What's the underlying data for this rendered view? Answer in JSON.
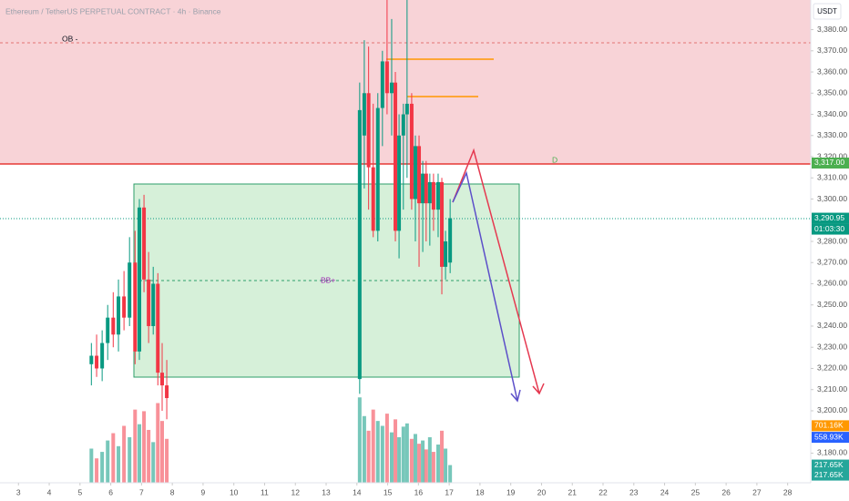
{
  "chart_data": {
    "type": "candlestick",
    "title": "Ethereum / TetherUS PERPETUAL CONTRACT · 4h · Binance",
    "y_unit": "USDT",
    "x": [
      5.37,
      5.54,
      5.72,
      5.9,
      6.08,
      6.25,
      6.43,
      6.61,
      6.79,
      6.93,
      7.08,
      7.23,
      7.38,
      7.53,
      7.67,
      7.82,
      14.09,
      14.24,
      14.38,
      14.53,
      14.68,
      14.83,
      14.98,
      15.13,
      15.25,
      15.37,
      15.51,
      15.63,
      15.78,
      15.9,
      16.02,
      16.14,
      16.25,
      16.37,
      16.49,
      16.64,
      16.76,
      16.88,
      17.03
    ],
    "open": [
      3222,
      3226,
      3220,
      3232,
      3244,
      3236,
      3254,
      3244,
      3270,
      3228,
      3296,
      3262,
      3240,
      3260,
      3218,
      3212,
      3215,
      3330,
      3350,
      3315,
      3285,
      3343,
      3365,
      3350,
      3355,
      3285,
      3330,
      3340,
      3345,
      3300,
      3325,
      3298,
      3312,
      3298,
      3308,
      3295,
      3308,
      3268,
      3270
    ],
    "high": [
      3232,
      3236,
      3238,
      3250,
      3256,
      3262,
      3266,
      3282,
      3285,
      3300,
      3302,
      3275,
      3268,
      3265,
      3232,
      3224,
      3355,
      3375,
      3372,
      3345,
      3350,
      3370,
      3395,
      3385,
      3360,
      3340,
      3345,
      3395,
      3350,
      3330,
      3330,
      3318,
      3318,
      3312,
      3312,
      3312,
      3310,
      3285,
      3300
    ],
    "low": [
      3212,
      3216,
      3214,
      3224,
      3230,
      3228,
      3238,
      3240,
      3222,
      3224,
      3256,
      3232,
      3236,
      3212,
      3200,
      3196,
      3208,
      3305,
      3295,
      3282,
      3280,
      3325,
      3340,
      3330,
      3280,
      3272,
      3295,
      3310,
      3295,
      3280,
      3268,
      3275,
      3280,
      3278,
      3285,
      3282,
      3255,
      3262,
      3265
    ],
    "close": [
      3226,
      3220,
      3232,
      3244,
      3236,
      3254,
      3244,
      3270,
      3228,
      3296,
      3262,
      3240,
      3260,
      3218,
      3212,
      3206,
      3342,
      3350,
      3315,
      3285,
      3343,
      3365,
      3350,
      3355,
      3285,
      3330,
      3340,
      3345,
      3300,
      3325,
      3298,
      3312,
      3298,
      3308,
      3295,
      3308,
      3268,
      3280,
      3290.95
    ],
    "volume": [
      420,
      300,
      380,
      520,
      610,
      450,
      700,
      560,
      900,
      720,
      880,
      650,
      500,
      980,
      760,
      540,
      1050,
      820,
      640,
      900,
      760,
      700,
      850,
      620,
      780,
      560,
      690,
      730,
      540,
      600,
      480,
      520,
      410,
      560,
      380,
      470,
      640,
      420,
      217.65
    ],
    "up_color": "#089981",
    "down_color": "#f23645",
    "xlim": [
      2.4,
      28.75
    ],
    "xticks": [
      3,
      4,
      5,
      6,
      7,
      8,
      9,
      10,
      11,
      12,
      13,
      14,
      15,
      16,
      17,
      18,
      19,
      20,
      21,
      22,
      23,
      24,
      25,
      26,
      27,
      28
    ],
    "ylim": [
      3166,
      3394
    ],
    "yticks": [
      {
        "value": 3380,
        "label": "3,380.00"
      },
      {
        "value": 3370,
        "label": "3,370.00"
      },
      {
        "value": 3360,
        "label": "3,360.00"
      },
      {
        "value": 3350,
        "label": "3,350.00"
      },
      {
        "value": 3340,
        "label": "3,340.00"
      },
      {
        "value": 3330,
        "label": "3,330.00"
      },
      {
        "value": 3320,
        "label": "3,320.00"
      },
      {
        "value": 3310,
        "label": "3,310.00"
      },
      {
        "value": 3300,
        "label": "3,300.00"
      },
      {
        "value": 3280,
        "label": "3,280.00"
      },
      {
        "value": 3270,
        "label": "3,270.00"
      },
      {
        "value": 3260,
        "label": "3,260.00"
      },
      {
        "value": 3250,
        "label": "3,250.00"
      },
      {
        "value": 3240,
        "label": "3,240.00"
      },
      {
        "value": 3230,
        "label": "3,230.00"
      },
      {
        "value": 3220,
        "label": "3,220.00"
      },
      {
        "value": 3210,
        "label": "3,210.00"
      },
      {
        "value": 3200,
        "label": "3,200.00"
      },
      {
        "value": 3180,
        "label": "3,180.00"
      }
    ],
    "vlim": [
      0,
      1400
    ],
    "price_labels": [
      {
        "value": 3317,
        "label": "3,317.00",
        "color": "#4caf50"
      },
      {
        "value": 3290.95,
        "label": "3,290.95",
        "color": "#089981"
      }
    ],
    "countdown": "01:03:30",
    "volume_labels": [
      {
        "value": 701.16,
        "label": "701.16K",
        "color": "#ff9800"
      },
      {
        "value": 558.93,
        "label": "558.93K",
        "color": "#2962ff"
      },
      {
        "value": 217.65,
        "label": "217.65K",
        "color": "#26a69a"
      },
      {
        "value": 217.65,
        "label": "217.65K",
        "color": "#26a69a"
      }
    ],
    "annotations": [
      "OB -",
      "BB+",
      "D"
    ]
  }
}
